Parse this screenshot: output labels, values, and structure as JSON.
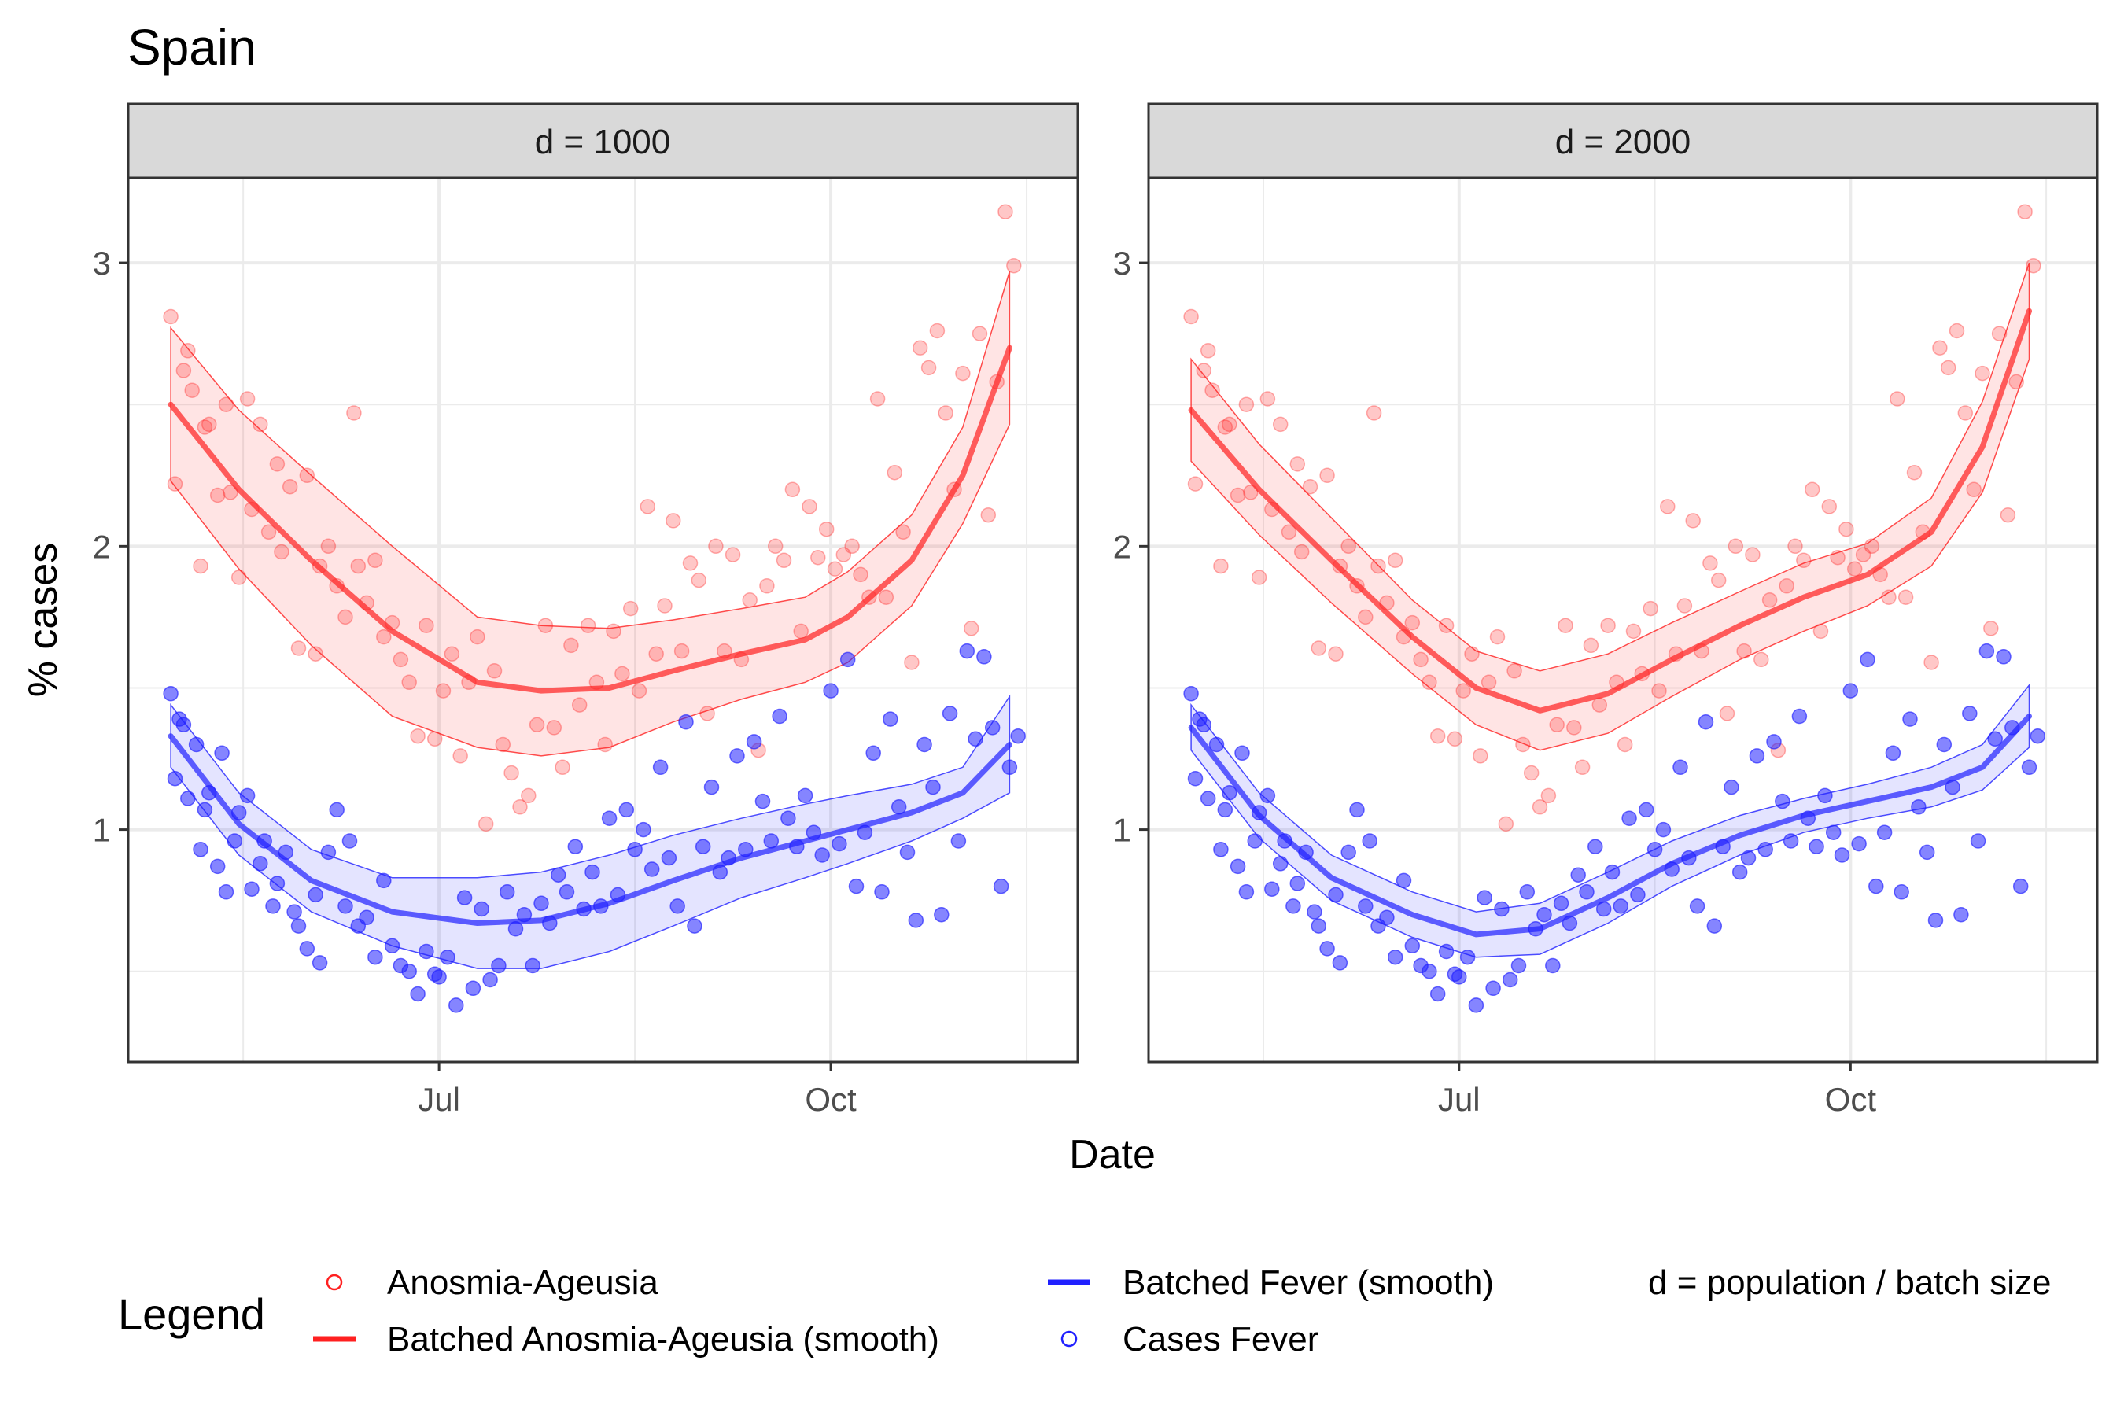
{
  "title": "Spain",
  "colors": {
    "anosmia": "#ff2020",
    "fever": "#2020ff",
    "strip_bg": "#d9d9d9",
    "grid": "#ebebeb"
  },
  "legend": {
    "title": "Legend",
    "items": [
      {
        "label": "Anosmia-Ageusia",
        "kind": "point",
        "color": "#ff2020"
      },
      {
        "label": "Batched Anosmia-Ageusia (smooth)",
        "kind": "line",
        "color": "#ff2020"
      },
      {
        "label": "Batched Fever (smooth)",
        "kind": "line",
        "color": "#2020ff"
      },
      {
        "label": "Cases Fever",
        "kind": "point",
        "color": "#2020ff"
      },
      {
        "label": "d = population / batch size",
        "kind": "note",
        "color": ""
      }
    ]
  },
  "chart_data": {
    "type": "scatter",
    "title": "Spain",
    "xlabel": "Date",
    "ylabel": "% cases",
    "x_ticks": [
      {
        "date": "2020-07-01",
        "label": "Jul"
      },
      {
        "date": "2020-10-01",
        "label": "Oct"
      }
    ],
    "y_ticks": [
      1,
      2,
      3
    ],
    "xlim": [
      "2020-04-19",
      "2020-11-28"
    ],
    "ylim": [
      0.18,
      3.3
    ],
    "grid": true,
    "legend_position": "bottom",
    "facets": [
      {
        "strip_label": "d = 1000",
        "series": [
          {
            "name": "Batched Anosmia-Ageusia (smooth)",
            "type": "line",
            "x": [
              "2020-04-29",
              "2020-05-15",
              "2020-06-01",
              "2020-06-20",
              "2020-07-10",
              "2020-07-25",
              "2020-08-10",
              "2020-08-25",
              "2020-09-10",
              "2020-09-25",
              "2020-10-05",
              "2020-10-20",
              "2020-11-01",
              "2020-11-12"
            ],
            "y": [
              2.5,
              2.2,
              1.95,
              1.7,
              1.52,
              1.49,
              1.5,
              1.56,
              1.62,
              1.67,
              1.75,
              1.95,
              2.25,
              2.7
            ],
            "ci_low": [
              2.23,
              1.92,
              1.65,
              1.4,
              1.29,
              1.26,
              1.29,
              1.38,
              1.46,
              1.52,
              1.59,
              1.79,
              2.08,
              2.43
            ],
            "ci_high": [
              2.77,
              2.48,
              2.25,
              2.0,
              1.75,
              1.72,
              1.71,
              1.74,
              1.78,
              1.82,
              1.91,
              2.11,
              2.42,
              2.97
            ]
          },
          {
            "name": "Batched Fever (smooth)",
            "type": "line",
            "x": [
              "2020-04-29",
              "2020-05-15",
              "2020-06-01",
              "2020-06-20",
              "2020-07-10",
              "2020-07-25",
              "2020-08-10",
              "2020-08-25",
              "2020-09-10",
              "2020-09-25",
              "2020-10-05",
              "2020-10-20",
              "2020-11-01",
              "2020-11-12"
            ],
            "y": [
              1.33,
              1.02,
              0.82,
              0.71,
              0.67,
              0.68,
              0.74,
              0.82,
              0.9,
              0.96,
              1.0,
              1.06,
              1.13,
              1.3
            ],
            "ci_low": [
              1.22,
              0.91,
              0.71,
              0.59,
              0.51,
              0.51,
              0.57,
              0.66,
              0.76,
              0.83,
              0.88,
              0.96,
              1.04,
              1.13
            ],
            "ci_high": [
              1.44,
              1.13,
              0.93,
              0.83,
              0.83,
              0.85,
              0.91,
              0.98,
              1.04,
              1.09,
              1.12,
              1.16,
              1.22,
              1.47
            ]
          }
        ]
      },
      {
        "strip_label": "d = 2000",
        "series": [
          {
            "name": "Batched Anosmia-Ageusia (smooth)",
            "type": "line",
            "x": [
              "2020-04-29",
              "2020-05-15",
              "2020-06-01",
              "2020-06-20",
              "2020-07-05",
              "2020-07-20",
              "2020-08-05",
              "2020-08-20",
              "2020-09-05",
              "2020-09-20",
              "2020-10-05",
              "2020-10-20",
              "2020-11-01",
              "2020-11-12"
            ],
            "y": [
              2.48,
              2.2,
              1.95,
              1.68,
              1.5,
              1.42,
              1.48,
              1.6,
              1.72,
              1.82,
              1.9,
              2.05,
              2.35,
              2.83
            ],
            "ci_low": [
              2.3,
              2.04,
              1.8,
              1.55,
              1.37,
              1.28,
              1.34,
              1.47,
              1.6,
              1.7,
              1.79,
              1.93,
              2.19,
              2.66
            ],
            "ci_high": [
              2.66,
              2.36,
              2.1,
              1.81,
              1.63,
              1.56,
              1.62,
              1.73,
              1.84,
              1.94,
              2.01,
              2.17,
              2.51,
              3.0
            ]
          },
          {
            "name": "Batched Fever (smooth)",
            "type": "line",
            "x": [
              "2020-04-29",
              "2020-05-15",
              "2020-06-01",
              "2020-06-20",
              "2020-07-05",
              "2020-07-20",
              "2020-08-05",
              "2020-08-20",
              "2020-09-05",
              "2020-09-20",
              "2020-10-05",
              "2020-10-20",
              "2020-11-01",
              "2020-11-12"
            ],
            "y": [
              1.36,
              1.05,
              0.83,
              0.7,
              0.63,
              0.65,
              0.76,
              0.88,
              0.98,
              1.05,
              1.1,
              1.15,
              1.22,
              1.4
            ],
            "ci_low": [
              1.28,
              0.97,
              0.75,
              0.62,
              0.55,
              0.56,
              0.67,
              0.8,
              0.91,
              0.99,
              1.04,
              1.08,
              1.14,
              1.29
            ],
            "ci_high": [
              1.44,
              1.13,
              0.91,
              0.78,
              0.71,
              0.74,
              0.85,
              0.96,
              1.05,
              1.11,
              1.16,
              1.22,
              1.3,
              1.51
            ]
          }
        ]
      }
    ],
    "points": [
      {
        "name": "Anosmia-Ageusia",
        "note": "same daily points in both panels",
        "x": [
          "2020-04-29",
          "2020-04-30",
          "2020-05-02",
          "2020-05-03",
          "2020-05-04",
          "2020-05-06",
          "2020-05-07",
          "2020-05-08",
          "2020-05-10",
          "2020-05-12",
          "2020-05-13",
          "2020-05-15",
          "2020-05-17",
          "2020-05-18",
          "2020-05-20",
          "2020-05-22",
          "2020-05-24",
          "2020-05-25",
          "2020-05-27",
          "2020-05-29",
          "2020-05-31",
          "2020-06-02",
          "2020-06-03",
          "2020-06-05",
          "2020-06-07",
          "2020-06-09",
          "2020-06-11",
          "2020-06-12",
          "2020-06-14",
          "2020-06-16",
          "2020-06-18",
          "2020-06-20",
          "2020-06-22",
          "2020-06-24",
          "2020-06-26",
          "2020-06-28",
          "2020-06-30",
          "2020-07-02",
          "2020-07-04",
          "2020-07-06",
          "2020-07-08",
          "2020-07-10",
          "2020-07-12",
          "2020-07-14",
          "2020-07-16",
          "2020-07-18",
          "2020-07-20",
          "2020-07-22",
          "2020-07-24",
          "2020-07-26",
          "2020-07-28",
          "2020-07-30",
          "2020-08-01",
          "2020-08-03",
          "2020-08-05",
          "2020-08-07",
          "2020-08-09",
          "2020-08-11",
          "2020-08-13",
          "2020-08-15",
          "2020-08-17",
          "2020-08-19",
          "2020-08-21",
          "2020-08-23",
          "2020-08-25",
          "2020-08-27",
          "2020-08-29",
          "2020-08-31",
          "2020-09-02",
          "2020-09-04",
          "2020-09-06",
          "2020-09-08",
          "2020-09-10",
          "2020-09-12",
          "2020-09-14",
          "2020-09-16",
          "2020-09-18",
          "2020-09-20",
          "2020-09-22",
          "2020-09-24",
          "2020-09-26",
          "2020-09-28",
          "2020-09-30",
          "2020-10-02",
          "2020-10-04",
          "2020-10-06",
          "2020-10-08",
          "2020-10-10",
          "2020-10-12",
          "2020-10-14",
          "2020-10-16",
          "2020-10-18",
          "2020-10-20",
          "2020-10-22",
          "2020-10-24",
          "2020-10-26",
          "2020-10-28",
          "2020-10-30",
          "2020-11-01",
          "2020-11-03",
          "2020-11-05",
          "2020-11-07",
          "2020-11-09",
          "2020-11-11",
          "2020-11-13"
        ],
        "y": [
          2.81,
          2.22,
          2.62,
          2.69,
          2.55,
          1.93,
          2.42,
          2.43,
          2.18,
          2.5,
          2.19,
          1.89,
          2.52,
          2.13,
          2.43,
          2.05,
          2.29,
          1.98,
          2.21,
          1.64,
          2.25,
          1.62,
          1.93,
          2.0,
          1.86,
          1.75,
          2.47,
          1.93,
          1.8,
          1.95,
          1.68,
          1.73,
          1.6,
          1.52,
          1.33,
          1.72,
          1.32,
          1.49,
          1.62,
          1.26,
          1.52,
          1.68,
          1.02,
          1.56,
          1.3,
          1.2,
          1.08,
          1.12,
          1.37,
          1.72,
          1.36,
          1.22,
          1.65,
          1.44,
          1.72,
          1.52,
          1.3,
          1.7,
          1.55,
          1.78,
          1.49,
          2.14,
          1.62,
          1.79,
          2.09,
          1.63,
          1.94,
          1.88,
          1.41,
          2.0,
          1.63,
          1.97,
          1.6,
          1.81,
          1.28,
          1.86,
          2.0,
          1.95,
          2.2,
          1.7,
          2.14,
          1.96,
          2.06,
          1.92,
          1.97,
          2.0,
          1.9,
          1.82,
          2.52,
          1.82,
          2.26,
          2.05,
          1.59,
          2.7,
          2.63,
          2.76,
          2.47,
          2.2,
          2.61,
          1.71,
          2.75,
          2.11,
          2.58,
          3.18,
          2.99
        ]
      },
      {
        "name": "Cases Fever",
        "note": "same daily points in both panels",
        "x": [
          "2020-04-29",
          "2020-04-30",
          "2020-05-01",
          "2020-05-02",
          "2020-05-03",
          "2020-05-05",
          "2020-05-06",
          "2020-05-07",
          "2020-05-08",
          "2020-05-10",
          "2020-05-11",
          "2020-05-12",
          "2020-05-14",
          "2020-05-15",
          "2020-05-17",
          "2020-05-18",
          "2020-05-20",
          "2020-05-21",
          "2020-05-23",
          "2020-05-24",
          "2020-05-26",
          "2020-05-28",
          "2020-05-29",
          "2020-05-31",
          "2020-06-02",
          "2020-06-03",
          "2020-06-05",
          "2020-06-07",
          "2020-06-09",
          "2020-06-10",
          "2020-06-12",
          "2020-06-14",
          "2020-06-16",
          "2020-06-18",
          "2020-06-20",
          "2020-06-22",
          "2020-06-24",
          "2020-06-26",
          "2020-06-28",
          "2020-06-30",
          "2020-07-01",
          "2020-07-03",
          "2020-07-05",
          "2020-07-07",
          "2020-07-09",
          "2020-07-11",
          "2020-07-13",
          "2020-07-15",
          "2020-07-17",
          "2020-07-19",
          "2020-07-21",
          "2020-07-23",
          "2020-07-25",
          "2020-07-27",
          "2020-07-29",
          "2020-07-31",
          "2020-08-02",
          "2020-08-04",
          "2020-08-06",
          "2020-08-08",
          "2020-08-10",
          "2020-08-12",
          "2020-08-14",
          "2020-08-16",
          "2020-08-18",
          "2020-08-20",
          "2020-08-22",
          "2020-08-24",
          "2020-08-26",
          "2020-08-28",
          "2020-08-30",
          "2020-09-01",
          "2020-09-03",
          "2020-09-05",
          "2020-09-07",
          "2020-09-09",
          "2020-09-11",
          "2020-09-13",
          "2020-09-15",
          "2020-09-17",
          "2020-09-19",
          "2020-09-21",
          "2020-09-23",
          "2020-09-25",
          "2020-09-27",
          "2020-09-29",
          "2020-10-01",
          "2020-10-03",
          "2020-10-05",
          "2020-10-07",
          "2020-10-09",
          "2020-10-11",
          "2020-10-13",
          "2020-10-15",
          "2020-10-17",
          "2020-10-19",
          "2020-10-21",
          "2020-10-23",
          "2020-10-25",
          "2020-10-27",
          "2020-10-29",
          "2020-10-31",
          "2020-11-02",
          "2020-11-04",
          "2020-11-06",
          "2020-11-08",
          "2020-11-10",
          "2020-11-12",
          "2020-11-14"
        ],
        "y": [
          1.48,
          1.18,
          1.39,
          1.37,
          1.11,
          1.3,
          0.93,
          1.07,
          1.13,
          0.87,
          1.27,
          0.78,
          0.96,
          1.06,
          1.12,
          0.79,
          0.88,
          0.96,
          0.73,
          0.81,
          0.92,
          0.71,
          0.66,
          0.58,
          0.77,
          0.53,
          0.92,
          1.07,
          0.73,
          0.96,
          0.66,
          0.69,
          0.55,
          0.82,
          0.59,
          0.52,
          0.5,
          0.42,
          0.57,
          0.49,
          0.48,
          0.55,
          0.38,
          0.76,
          0.44,
          0.72,
          0.47,
          0.52,
          0.78,
          0.65,
          0.7,
          0.52,
          0.74,
          0.67,
          0.84,
          0.78,
          0.94,
          0.72,
          0.85,
          0.73,
          1.04,
          0.77,
          1.07,
          0.93,
          1.0,
          0.86,
          1.22,
          0.9,
          0.73,
          1.38,
          0.66,
          0.94,
          1.15,
          0.85,
          0.9,
          1.26,
          0.93,
          1.31,
          1.1,
          0.96,
          1.4,
          1.04,
          0.94,
          1.12,
          0.99,
          0.91,
          1.49,
          0.95,
          1.6,
          0.8,
          0.99,
          1.27,
          0.78,
          1.39,
          1.08,
          0.92,
          0.68,
          1.3,
          1.15,
          0.7,
          1.41,
          0.96,
          1.63,
          1.32,
          1.61,
          1.36,
          0.8,
          1.22,
          1.33
        ]
      }
    ]
  }
}
